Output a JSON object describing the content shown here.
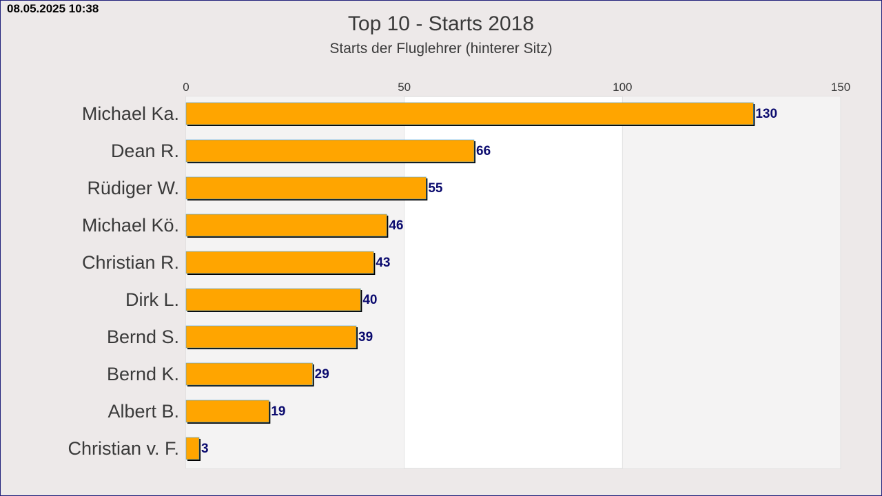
{
  "timestamp": "08.05.2025 10:38",
  "colors": {
    "background": "#ede9e9",
    "bar_fill": "#ffa500",
    "value_label": "#0a0a6e",
    "category_label": "#3a3a3a"
  },
  "chart_data": {
    "type": "bar",
    "orientation": "horizontal",
    "title": "Top 10 - Starts 2018",
    "subtitle": "Starts der Fluglehrer (hinterer Sitz)",
    "xlabel": "",
    "ylabel": "",
    "xlim": [
      0,
      150
    ],
    "x_ticks": [
      "0",
      "50",
      "100",
      "150"
    ],
    "x_axis_position": "top",
    "grid": true,
    "categories": [
      "Michael Ka.",
      "Dean R.",
      "Rüdiger W.",
      "Michael Kö.",
      "Christian R.",
      "Dirk L.",
      "Bernd S.",
      "Bernd K.",
      "Albert B.",
      "Christian v. F."
    ],
    "values": [
      130,
      66,
      55,
      46,
      43,
      40,
      39,
      29,
      19,
      3
    ],
    "value_labels": [
      "130",
      "66",
      "55",
      "46",
      "43",
      "40",
      "39",
      "29",
      "19",
      "3"
    ]
  }
}
